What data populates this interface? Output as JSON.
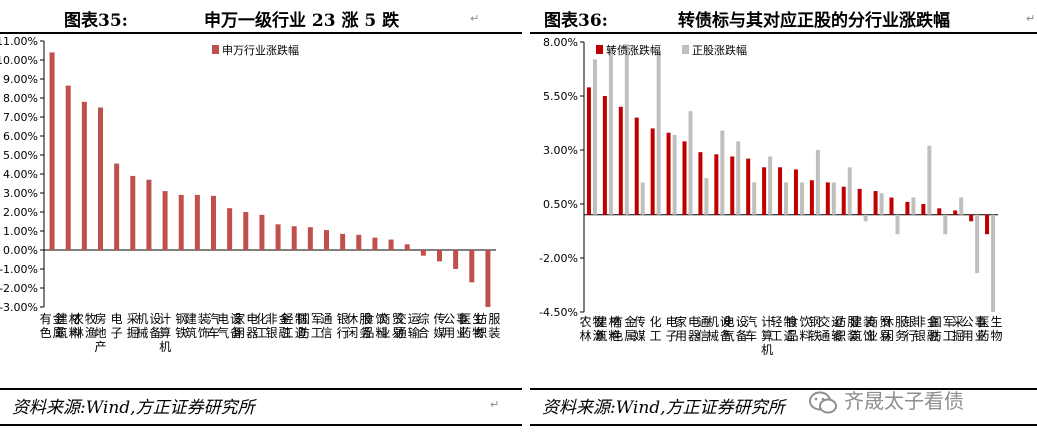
{
  "left": {
    "figure_number": "图表35:",
    "figure_title": "申万一级行业 23 涨 5 跌",
    "source": "资料来源:Wind,方正证券研究所"
  },
  "right": {
    "figure_number": "图表36:",
    "figure_title": "转债标与其对应正股的分行业涨跌幅",
    "source": "资料来源:Wind,方正证券研究所"
  },
  "watermark": {
    "text": "齐晟太子看债",
    "icon": "wechat-logo-icon"
  },
  "colors": {
    "red": "#c0504d",
    "crimson": "#c00000",
    "gray": "#bfbfbf"
  },
  "chart_data": [
    {
      "type": "bar",
      "ylim": [
        -3,
        11
      ],
      "yticks": [
        "11.00%",
        "10.00%",
        "9.00%",
        "8.00%",
        "7.00%",
        "6.00%",
        "5.00%",
        "4.00%",
        "3.00%",
        "2.00%",
        "1.00%",
        "0.00%",
        "-1.00%",
        "-2.00%",
        "-3.00%"
      ],
      "legend_position": "top-left",
      "categories": [
        "有色金属",
        "建筑材料",
        "农林牧渔",
        "房地产",
        "电子",
        "采掘",
        "机械设备",
        "计算机",
        "钢铁",
        "建筑装饰",
        "汽车",
        "电气设备",
        "家用电器",
        "化工",
        "非银金融",
        "轻工制造",
        "国防军工",
        "通信",
        "银行",
        "休闲服务",
        "食品饮料",
        "商业贸易",
        "交通运输",
        "综合",
        "传媒",
        "公用事业",
        "医药生物",
        "纺织服装"
      ],
      "series": [
        {
          "name": "申万行业涨跌幅",
          "values": [
            10.4,
            8.65,
            7.8,
            7.5,
            4.55,
            3.9,
            3.7,
            3.1,
            2.9,
            2.9,
            2.85,
            2.2,
            2.0,
            1.85,
            1.35,
            1.25,
            1.2,
            1.05,
            0.85,
            0.8,
            0.65,
            0.55,
            0.3,
            -0.3,
            -0.6,
            -1.0,
            -1.7,
            -3.0
          ]
        }
      ]
    },
    {
      "type": "bar",
      "ylim": [
        -4.5,
        8
      ],
      "yticks": [
        "8.00%",
        "5.50%",
        "3.00%",
        "0.50%",
        "-2.00%",
        "-4.50%"
      ],
      "legend_position": "top-left",
      "categories": [
        "农林牧渔",
        "建筑材料",
        "有色金属",
        "传媒",
        "化工",
        "电子",
        "家用电器",
        "通信",
        "机械设备",
        "电气设备",
        "汽车",
        "计算机",
        "轻工制造",
        "食品饮料",
        "钢铁",
        "交通运输",
        "纺织服装",
        "建筑装饰",
        "商业贸易",
        "休闲服务",
        "银行",
        "非银金融",
        "国防军工",
        "采掘",
        "公用事业",
        "医药生物"
      ],
      "series": [
        {
          "name": "转债涨跌幅",
          "values": [
            5.9,
            5.5,
            5.0,
            4.5,
            4.0,
            3.8,
            3.4,
            2.9,
            2.8,
            2.7,
            2.6,
            2.2,
            2.2,
            2.1,
            1.6,
            1.5,
            1.3,
            1.2,
            1.1,
            0.8,
            0.6,
            0.5,
            0.3,
            0.2,
            -0.3,
            -0.9
          ]
        },
        {
          "name": "正股涨跌幅",
          "values": [
            7.2,
            7.8,
            7.9,
            1.5,
            7.5,
            3.7,
            4.8,
            1.7,
            3.9,
            3.4,
            1.5,
            2.7,
            1.5,
            1.5,
            3.0,
            1.5,
            2.2,
            -0.3,
            1.0,
            -0.9,
            0.8,
            3.2,
            -0.9,
            0.8,
            -2.7,
            -4.5
          ]
        }
      ]
    }
  ]
}
